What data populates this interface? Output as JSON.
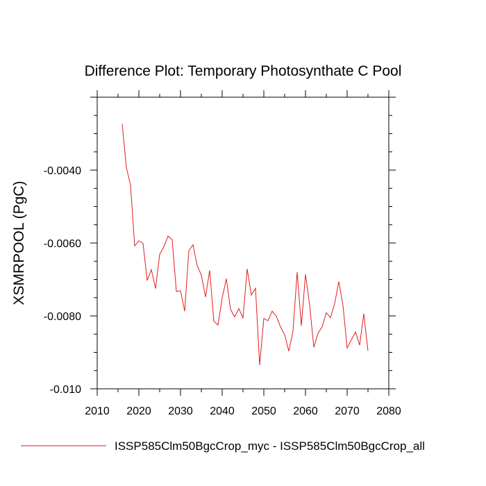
{
  "chart_data": {
    "type": "line",
    "title": "Difference Plot: Temporary Photosynthate C Pool",
    "xlabel": "",
    "ylabel": "XSMRPOOL  (PgC)",
    "xlim": [
      2010,
      2080
    ],
    "ylim": [
      -0.01,
      -0.002
    ],
    "x_ticks": [
      2010,
      2020,
      2030,
      2040,
      2050,
      2060,
      2070,
      2080
    ],
    "y_ticks": [
      -0.01,
      -0.008,
      -0.006,
      -0.004
    ],
    "x_tick_labels": [
      "2010",
      "2020",
      "2030",
      "2040",
      "2050",
      "2060",
      "2070",
      "2080"
    ],
    "y_tick_labels": [
      "-0.010",
      "-0.0080",
      "-0.0060",
      "-0.0040"
    ],
    "legend_position": "bottom",
    "series": [
      {
        "name": "ISSP585Clm50BgcCrop_myc - ISSP585Clm50BgcCrop_all",
        "color": "#e41a1c",
        "x": [
          2016,
          2017,
          2018,
          2019,
          2020,
          2021,
          2022,
          2023,
          2024,
          2025,
          2026,
          2027,
          2028,
          2029,
          2030,
          2031,
          2032,
          2033,
          2034,
          2035,
          2036,
          2037,
          2038,
          2039,
          2040,
          2041,
          2042,
          2043,
          2044,
          2045,
          2046,
          2047,
          2048,
          2049,
          2050,
          2051,
          2052,
          2053,
          2054,
          2055,
          2056,
          2057,
          2058,
          2059,
          2060,
          2061,
          2062,
          2063,
          2064,
          2065,
          2066,
          2067,
          2068,
          2069,
          2070,
          2071,
          2072,
          2073,
          2074,
          2075
        ],
        "values": [
          -0.00273,
          -0.00393,
          -0.00441,
          -0.00608,
          -0.00594,
          -0.00601,
          -0.00703,
          -0.00673,
          -0.00725,
          -0.00631,
          -0.0061,
          -0.00581,
          -0.00591,
          -0.00733,
          -0.00731,
          -0.00787,
          -0.00621,
          -0.00605,
          -0.00662,
          -0.00688,
          -0.00748,
          -0.00675,
          -0.00815,
          -0.00825,
          -0.0075,
          -0.00698,
          -0.00782,
          -0.00803,
          -0.0078,
          -0.00805,
          -0.00671,
          -0.00743,
          -0.00724,
          -0.00935,
          -0.00807,
          -0.00813,
          -0.00787,
          -0.00801,
          -0.0083,
          -0.00852,
          -0.00897,
          -0.00842,
          -0.0068,
          -0.00827,
          -0.00686,
          -0.00771,
          -0.00886,
          -0.00848,
          -0.0083,
          -0.00791,
          -0.00805,
          -0.00766,
          -0.00706,
          -0.00771,
          -0.00888,
          -0.00866,
          -0.00844,
          -0.0088,
          -0.00794,
          -0.00896
        ]
      }
    ]
  }
}
